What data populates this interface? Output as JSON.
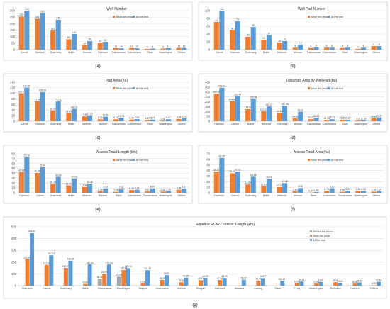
{
  "legend": {
    "near_peak": "Near the peak",
    "at_end": "At the end",
    "before_boom": "Before the boom"
  },
  "colors": {
    "before_boom": "#a5a5a5",
    "near_peak": "#ed7d31",
    "at_end": "#5b9bd5",
    "axis": "#bfbfbf",
    "grid": "#d9d9d9",
    "text": "#404040"
  },
  "chart_data": [
    {
      "id": "a",
      "type": "bar",
      "panel_label": "(a)",
      "title": "Well Number",
      "ylim": [
        0,
        300
      ],
      "yticks": [
        0,
        50,
        100,
        150,
        200,
        250,
        300
      ],
      "categories": [
        "Carroll",
        "Harrison",
        "Guernsey",
        "Noble",
        "Monroe",
        "Belmont",
        "Tuscarawas",
        "Columbiana",
        "Stark",
        "Washington",
        "Others"
      ],
      "series": [
        {
          "name": "Near the peak",
          "values": [
            255,
            238,
            147,
            80,
            35,
            54,
            11,
            11,
            6,
            8,
            13
          ]
        },
        {
          "name": "At the end",
          "values": [
            298,
            280,
            230,
            120,
            66,
            60,
            10,
            10,
            8,
            11,
            13
          ]
        }
      ],
      "labels": [
        [
          "255",
          "238",
          "147",
          "80",
          "35",
          "54",
          "11",
          "11",
          "6",
          "8",
          "13"
        ],
        [
          "298",
          "280",
          "230",
          "120",
          "66",
          "60",
          "10",
          "10",
          "8",
          "11",
          "13"
        ]
      ]
    },
    {
      "id": "b",
      "type": "bar",
      "panel_label": "(b)",
      "title": "Well Pad Number",
      "ylim": [
        0,
        100
      ],
      "yticks": [
        0,
        20,
        40,
        60,
        80,
        100
      ],
      "categories": [
        "Carroll",
        "Harrison",
        "Guernsey",
        "Noble",
        "Belmont",
        "Monroe",
        "Tuscarawas",
        "Columbiana",
        "Stark",
        "Washington",
        "Others"
      ],
      "series": [
        {
          "name": "Near the peak",
          "values": [
            71,
            50,
            33,
            25,
            18,
            5,
            4,
            5,
            4,
            2,
            9
          ]
        },
        {
          "name": "At the end",
          "values": [
            100,
            73,
            58,
            37,
            22,
            13,
            6,
            5,
            5,
            5,
            9
          ]
        }
      ],
      "labels": [
        [
          "71",
          "50",
          "33",
          "25",
          "18",
          "5",
          "4",
          "5",
          "4",
          "2",
          "9"
        ],
        [
          "100",
          "73",
          "58",
          "37",
          "22",
          "13",
          "6",
          "5",
          "5",
          "5",
          "9"
        ]
      ]
    },
    {
      "id": "c",
      "type": "bar",
      "panel_label": "(c)",
      "title": "Pad Area (ha)",
      "ylim": [
        0,
        140
      ],
      "yticks": [
        0,
        20,
        40,
        60,
        80,
        100,
        120,
        140
      ],
      "categories": [
        "Carroll",
        "Harrison",
        "Guernsey",
        "Noble",
        "Belmont",
        "Monroe",
        "Tuscarawas",
        "Columbiana",
        "Stark",
        "Washington",
        "Others"
      ],
      "series": [
        {
          "name": "Near the peak",
          "values": [
            100.57,
            71.48,
            38.91,
            28.34,
            17.39,
            6.72,
            6.71,
            5.94,
            4.17,
            2.38,
            8.24
          ]
        },
        {
          "name": "At the end",
          "values": [
            120.82,
            105.06,
            71.01,
            44.71,
            21.15,
            16.35,
            12.78,
            7.52,
            5.75,
            6.97,
            10.41
          ]
        }
      ],
      "labels": [
        [
          "100.57",
          "71.48",
          "38.91",
          "28.34",
          "17.39",
          "6.72",
          "6.71",
          "5.94",
          "4.17",
          "2.38",
          "8.24"
        ],
        [
          "120.82",
          "105.06",
          "71.01",
          "44.71",
          "21.15",
          "16.35",
          "12.78",
          "7.52",
          "5.75",
          "6.97",
          "10.41"
        ]
      ]
    },
    {
      "id": "d",
      "type": "bar",
      "panel_label": "(d)",
      "title": "Disturbed Area by Well Pad (ha)",
      "ylim": [
        0,
        400
      ],
      "yticks": [
        0,
        50,
        100,
        150,
        200,
        250,
        300,
        350,
        400
      ],
      "categories": [
        "Harrison",
        "Carroll",
        "Noble",
        "Belmont",
        "Guernsey",
        "Monroe",
        "Tuscarawas",
        "Columbiana",
        "Stark",
        "Washington",
        "Others"
      ],
      "series": [
        {
          "name": "Near the peak",
          "values": [
            280.45,
            204.88,
            123.93,
            101.22,
            84.84,
            29.04,
            20.42,
            14.74,
            15.89,
            8.2,
            28.92
          ]
        },
        {
          "name": "At the end",
          "values": [
            343.51,
            255.47,
            228.08,
            150.27,
            157.98,
            96.11,
            35.93,
            20.11,
            15.89,
            11.2,
            39.47
          ]
        }
      ],
      "labels": [
        [
          "280.45",
          "204.88",
          "123.93",
          "101.22",
          "84.84",
          "29.04",
          "20.42",
          "14.74",
          "15.89",
          "8.2",
          "28.92"
        ],
        [
          "343.51",
          "255.47",
          "228.08",
          "150.27",
          "157.98",
          "96.11",
          "35.93",
          "20.11",
          "15.89",
          "11.20",
          "39.47"
        ]
      ]
    },
    {
      "id": "e",
      "type": "bar",
      "panel_label": "(e)",
      "title": "Access Road Length (km)",
      "ylim": [
        0,
        80
      ],
      "yticks": [
        0,
        10,
        20,
        30,
        40,
        50,
        60,
        70,
        80
      ],
      "categories": [
        "Harrison",
        "Carroll",
        "Guernsey",
        "Noble",
        "Belmont",
        "Monroe",
        "Stark",
        "Columbiana",
        "Tuscarawas",
        "Muskingum",
        "Others"
      ],
      "series": [
        {
          "name": "Near the peak",
          "values": [
            42.88,
            40.96,
            18.19,
            15.09,
            11.98,
            3.38,
            1.86,
            5.46,
            2.67,
            2.3,
            6.35
          ]
        },
        {
          "name": "At the end",
          "values": [
            73.36,
            52.44,
            32.96,
            29.32,
            18.46,
            8.93,
            7.08,
            6.22,
            8.97,
            3.36,
            8.47
          ]
        }
      ],
      "labels": [
        [
          "42.88",
          "40.96",
          "18.19",
          "15.09",
          "11.98",
          "3.38",
          "1.86",
          "5.46",
          "2.67",
          "2.30",
          "6.35"
        ],
        [
          "73.36",
          "52.44",
          "32.96",
          "29.32",
          "18.46",
          "8.93",
          "7.08",
          "6.22",
          "8.97",
          "3.36",
          "8.47"
        ]
      ]
    },
    {
      "id": "f",
      "type": "bar",
      "panel_label": "(f)",
      "title": "Access Road Area (ha)",
      "ylim": [
        0,
        70
      ],
      "yticks": [
        0,
        10,
        20,
        30,
        40,
        50,
        60,
        70
      ],
      "categories": [
        "Harrison",
        "Carroll",
        "Guernsey",
        "Noble",
        "Belmont",
        "Monroe",
        "Stark",
        "Coshocton",
        "Tuscarawas",
        "Muskingum",
        "Others"
      ],
      "series": [
        {
          "name": "Near the peak",
          "values": [
            38.12,
            35.08,
            14.96,
            12.09,
            10.16,
            2.55,
            0.37,
            3.75,
            1.58,
            3.28,
            1.82
          ]
        },
        {
          "name": "At the end",
          "values": [
            62.66,
            37.73,
            28.88,
            25.28,
            17.48,
            8.56,
            1.36,
            8.2,
            3.37,
            3.28,
            2.65
          ]
        }
      ],
      "labels": [
        [
          "38.12",
          "35.08",
          "14.96",
          "12.09",
          "10.16",
          "2.55",
          "0.37",
          "3.75",
          "1.58",
          "3.28",
          "1.82"
        ],
        [
          "62.66",
          "37.73",
          "28.88",
          "25.28",
          "17.48",
          "8.56",
          "1.36",
          "8.20",
          "3.37",
          "3.28",
          "2.65"
        ]
      ]
    },
    {
      "id": "g",
      "type": "bar",
      "panel_label": "(g)",
      "title": "Pipeline ROW Corridor Length (km)",
      "ylim": [
        0,
        500
      ],
      "yticks": [
        0,
        100,
        200,
        300,
        400,
        500
      ],
      "categories": [
        "Harrison",
        "Carroll",
        "Guernsey",
        "Noble",
        "Tuscarawas",
        "Muskingum",
        "Wayne",
        "Coshocton",
        "Monroe",
        "Morgan",
        "Belmont",
        "Ashland",
        "Licking",
        "Stark",
        "Perry",
        "Washington",
        "Richland",
        "Holmes",
        "Others"
      ],
      "series": [
        {
          "name": "Before the boom",
          "values": [
            0,
            0,
            0,
            0,
            60.31,
            76.48,
            0,
            0,
            0,
            0,
            0,
            0,
            0,
            0,
            0,
            0,
            0,
            0,
            0
          ]
        },
        {
          "name": "Near the peak",
          "values": [
            226.08,
            177.08,
            150.2,
            13.83,
            100.96,
            132.86,
            17.4,
            48.09,
            28.92,
            46.31,
            47.48,
            0,
            43.43,
            0,
            18.69,
            17.02,
            29.08,
            16.35,
            3.56
          ]
        },
        {
          "name": "At the end",
          "values": [
            446.32,
            257.74,
            212.23,
            180.4,
            179.9,
            148.73,
            131.36,
            89.2,
            67.85,
            66.23,
            65.29,
            50.37,
            63.57,
            42.13,
            35.12,
            31.41,
            21.83,
            26.97,
            32.89
          ]
        }
      ],
      "labels": [
        [
          "",
          "",
          "",
          "",
          "60.31",
          "76.48",
          "",
          "",
          "",
          "",
          "",
          "",
          "",
          "",
          "",
          "",
          "",
          "",
          ""
        ],
        [
          "226.08",
          "177.08",
          "150.20",
          "13.83",
          "100.96",
          "132.86",
          "17.40",
          "48.09",
          "28.92",
          "46.31",
          "47.48",
          "",
          "43.43",
          "",
          "18.69",
          "17.02",
          "29.08",
          "16.35",
          "3.56"
        ],
        [
          "446.32",
          "257.74",
          "212.23",
          "180.40",
          "179.90",
          "148.73",
          "131.36",
          "89.20",
          "67.85",
          "66.23",
          "65.29",
          "50.37",
          "63.57",
          "42.13",
          "35.12",
          "31.41",
          "21.83",
          "26.97",
          "32.89"
        ]
      ]
    }
  ]
}
